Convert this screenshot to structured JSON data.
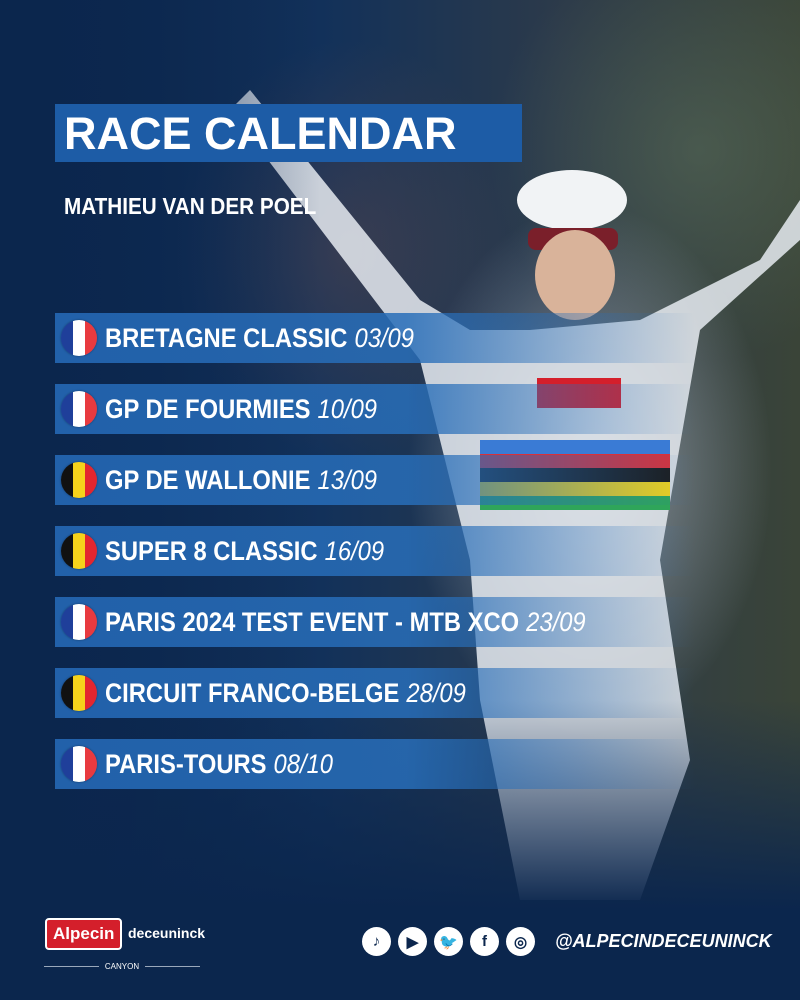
{
  "header": {
    "title": "RACE CALENDAR",
    "subtitle": "MATHIEU VAN DER POEL"
  },
  "races": [
    {
      "name": "BRETAGNE CLASSIC",
      "date": "03/09",
      "country": "france"
    },
    {
      "name": "GP DE FOURMIES",
      "date": "10/09",
      "country": "france"
    },
    {
      "name": "GP DE WALLONIE",
      "date": "13/09",
      "country": "belgium"
    },
    {
      "name": "SUPER 8 CLASSIC",
      "date": "16/09",
      "country": "belgium"
    },
    {
      "name": "PARIS 2024 TEST EVENT - MTB XCO",
      "date": "23/09",
      "country": "france"
    },
    {
      "name": "CIRCUIT FRANCO-BELGE",
      "date": "28/09",
      "country": "belgium"
    },
    {
      "name": "PARIS-TOURS",
      "date": "08/10",
      "country": "france"
    }
  ],
  "flags": {
    "france": [
      "#1f3f9a",
      "#ffffff",
      "#e83a3f"
    ],
    "belgium": [
      "#111111",
      "#f6d31b",
      "#e3262f"
    ]
  },
  "footer": {
    "logos": [
      "Alpecin",
      "deceuninck",
      "CANYON"
    ],
    "social_icons": [
      "tiktok-icon",
      "youtube-icon",
      "twitter-icon",
      "facebook-icon",
      "instagram-icon"
    ],
    "handle": "@ALPECINDECEUNINCK"
  },
  "colors": {
    "background": "#0b264d",
    "title_box": "#1d5ca6",
    "row": "#2364af",
    "brand_red": "#d41f2b"
  }
}
